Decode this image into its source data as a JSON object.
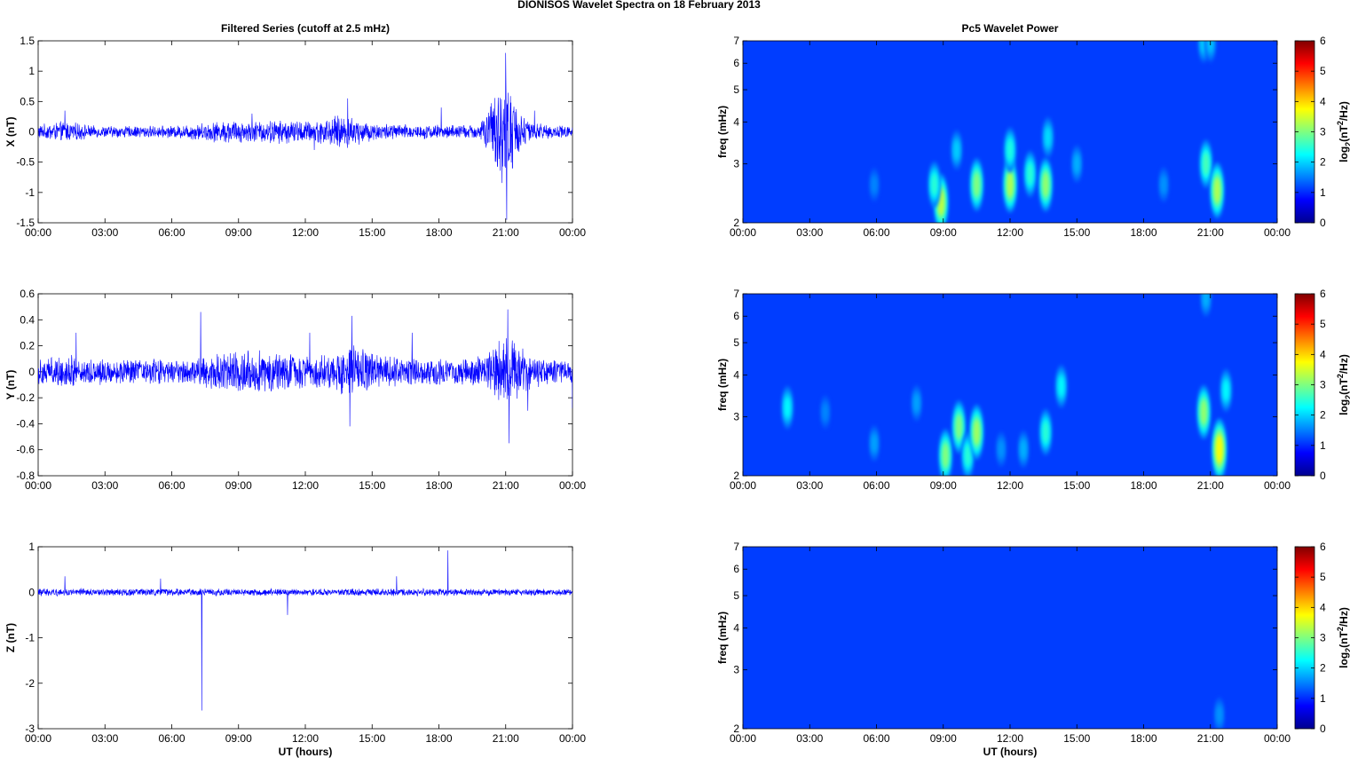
{
  "figure": {
    "title": "DIONISOS Wavelet Spectra on 18 February  2013"
  },
  "chart_data": [
    {
      "type": "line",
      "title": "Filtered Series (cutoff at 2.5 mHz)",
      "xlabel": "",
      "ylabel": "X (nT)",
      "xlim": [
        0,
        24
      ],
      "ylim": [
        -1.5,
        1.5
      ],
      "x_ticks": [
        "00:00",
        "03:00",
        "06:00",
        "09:00",
        "12:00",
        "15:00",
        "18:00",
        "21:00",
        "00:00"
      ],
      "y_ticks": [
        "-1.5",
        "-1",
        "-0.5",
        "0",
        "0.5",
        "1",
        "1.5"
      ],
      "line_color": "#0000ff",
      "series": [
        {
          "x": [
            0,
            1.2,
            2.5,
            4,
            6,
            8.7,
            9.5,
            11,
            12.4,
            13.8,
            14.3,
            15,
            17,
            18,
            19.8,
            21,
            21.3,
            21.7,
            22.2,
            24
          ],
          "amplitude": [
            0.12,
            0.18,
            0.1,
            0.1,
            0.1,
            0.2,
            0.18,
            0.2,
            0.18,
            0.3,
            0.22,
            0.15,
            0.12,
            0.12,
            0.12,
            1.0,
            0.6,
            0.35,
            0.15,
            0.1
          ],
          "spikes": [
            [
              1.2,
              0.35
            ],
            [
              9.6,
              0.3
            ],
            [
              12.4,
              -0.3
            ],
            [
              13.9,
              0.55
            ],
            [
              18.1,
              0.4
            ],
            [
              21.0,
              1.3
            ],
            [
              21.05,
              -1.45
            ],
            [
              21.3,
              -0.6
            ],
            [
              22.3,
              0.35
            ]
          ]
        }
      ]
    },
    {
      "type": "line",
      "title": "",
      "xlabel": "",
      "ylabel": "Y (nT)",
      "xlim": [
        0,
        24
      ],
      "ylim": [
        -0.8,
        0.6
      ],
      "x_ticks": [
        "00:00",
        "03:00",
        "06:00",
        "09:00",
        "12:00",
        "15:00",
        "18:00",
        "21:00",
        "00:00"
      ],
      "y_ticks": [
        "-0.8",
        "-0.6",
        "-0.4",
        "-0.2",
        "0",
        "0.2",
        "0.4",
        "0.6"
      ],
      "line_color": "#0000ff",
      "series": [
        {
          "x": [
            0,
            1.5,
            3,
            5,
            7,
            8,
            9.5,
            10.5,
            12,
            13.5,
            14.3,
            15.5,
            17,
            18.5,
            20,
            21,
            21.5,
            22.2,
            24
          ],
          "amplitude": [
            0.12,
            0.13,
            0.1,
            0.1,
            0.11,
            0.14,
            0.18,
            0.16,
            0.13,
            0.16,
            0.22,
            0.12,
            0.11,
            0.11,
            0.12,
            0.3,
            0.24,
            0.12,
            0.1
          ],
          "spikes": [
            [
              1.7,
              0.3
            ],
            [
              7.3,
              0.46
            ],
            [
              12.2,
              0.3
            ],
            [
              14.1,
              0.43
            ],
            [
              14.0,
              -0.42
            ],
            [
              16.8,
              0.3
            ],
            [
              21.1,
              0.48
            ],
            [
              21.15,
              -0.55
            ],
            [
              22.0,
              -0.3
            ],
            [
              24,
              -0.28
            ]
          ]
        }
      ]
    },
    {
      "type": "line",
      "title": "",
      "xlabel": "UT (hours)",
      "ylabel": "Z (nT)",
      "xlim": [
        0,
        24
      ],
      "ylim": [
        -3,
        1
      ],
      "x_ticks": [
        "00:00",
        "03:00",
        "06:00",
        "09:00",
        "12:00",
        "15:00",
        "18:00",
        "21:00",
        "00:00"
      ],
      "y_ticks": [
        "-3",
        "-2",
        "-1",
        "0",
        "1"
      ],
      "line_color": "#0000ff",
      "series": [
        {
          "x": [
            0,
            3,
            6,
            9,
            12,
            15,
            18,
            21,
            24
          ],
          "amplitude": [
            0.09,
            0.08,
            0.08,
            0.08,
            0.08,
            0.08,
            0.08,
            0.08,
            0.07
          ],
          "spikes": [
            [
              1.2,
              0.35
            ],
            [
              5.5,
              0.3
            ],
            [
              7.35,
              -2.6
            ],
            [
              11.2,
              -0.5
            ],
            [
              16.1,
              0.35
            ],
            [
              18.4,
              0.92
            ]
          ]
        }
      ]
    },
    {
      "type": "heatmap",
      "title": "Pc5 Wavelet Power",
      "xlabel": "",
      "ylabel": "freq (mHz)",
      "xlim": [
        0,
        24
      ],
      "ylim": [
        2,
        7
      ],
      "yscale": "log",
      "x_ticks": [
        "00:00",
        "03:00",
        "06:00",
        "09:00",
        "12:00",
        "15:00",
        "18:00",
        "21:00",
        "00:00"
      ],
      "y_ticks": [
        "2",
        "3",
        "4",
        "5",
        "6",
        "7"
      ],
      "colorbar": {
        "label": "log2(nT2/Hz)",
        "range": [
          0,
          6
        ],
        "ticks": [
          "0",
          "1",
          "2",
          "3",
          "4",
          "5",
          "6"
        ],
        "colormap": "jet"
      },
      "blobs": [
        {
          "t": 8.9,
          "f": 2.3,
          "power": 2.6
        },
        {
          "t": 8.6,
          "f": 2.6,
          "power": 1.6
        },
        {
          "t": 9.6,
          "f": 3.3,
          "power": 1.0
        },
        {
          "t": 10.5,
          "f": 2.6,
          "power": 2.2
        },
        {
          "t": 12.0,
          "f": 2.6,
          "power": 2.5
        },
        {
          "t": 12.0,
          "f": 3.3,
          "power": 1.5
        },
        {
          "t": 12.9,
          "f": 2.8,
          "power": 1.6
        },
        {
          "t": 13.6,
          "f": 2.6,
          "power": 2.3
        },
        {
          "t": 13.7,
          "f": 3.6,
          "power": 1.1
        },
        {
          "t": 15.0,
          "f": 3.0,
          "power": 0.8
        },
        {
          "t": 5.9,
          "f": 2.6,
          "power": 0.5
        },
        {
          "t": 18.9,
          "f": 2.6,
          "power": 0.6
        },
        {
          "t": 20.8,
          "f": 3.0,
          "power": 1.8
        },
        {
          "t": 21.3,
          "f": 2.5,
          "power": 2.5
        },
        {
          "t": 20.7,
          "f": 6.9,
          "power": 1.0
        },
        {
          "t": 21.0,
          "f": 6.9,
          "power": 0.9
        }
      ]
    },
    {
      "type": "heatmap",
      "title": "",
      "xlabel": "",
      "ylabel": "freq (mHz)",
      "xlim": [
        0,
        24
      ],
      "ylim": [
        2,
        7
      ],
      "yscale": "log",
      "x_ticks": [
        "00:00",
        "03:00",
        "06:00",
        "09:00",
        "12:00",
        "15:00",
        "18:00",
        "21:00",
        "00:00"
      ],
      "y_ticks": [
        "2",
        "3",
        "4",
        "5",
        "6",
        "7"
      ],
      "colorbar": {
        "label": "log2(nT2/Hz)",
        "range": [
          0,
          6
        ],
        "ticks": [
          "0",
          "1",
          "2",
          "3",
          "4",
          "5",
          "6"
        ],
        "colormap": "jet"
      },
      "blobs": [
        {
          "t": 2.0,
          "f": 3.2,
          "power": 1.3
        },
        {
          "t": 3.7,
          "f": 3.1,
          "power": 0.5
        },
        {
          "t": 5.9,
          "f": 2.5,
          "power": 0.7
        },
        {
          "t": 7.8,
          "f": 3.3,
          "power": 0.7
        },
        {
          "t": 9.1,
          "f": 2.3,
          "power": 2.2
        },
        {
          "t": 9.7,
          "f": 2.8,
          "power": 2.2
        },
        {
          "t": 10.1,
          "f": 2.3,
          "power": 1.6
        },
        {
          "t": 10.5,
          "f": 2.7,
          "power": 2.4
        },
        {
          "t": 11.6,
          "f": 2.4,
          "power": 0.6
        },
        {
          "t": 12.6,
          "f": 2.4,
          "power": 0.8
        },
        {
          "t": 13.6,
          "f": 2.7,
          "power": 1.6
        },
        {
          "t": 14.3,
          "f": 3.7,
          "power": 1.3
        },
        {
          "t": 20.7,
          "f": 3.1,
          "power": 2.3
        },
        {
          "t": 21.4,
          "f": 2.4,
          "power": 3.0
        },
        {
          "t": 21.7,
          "f": 3.6,
          "power": 1.3
        },
        {
          "t": 20.8,
          "f": 6.8,
          "power": 0.8
        }
      ]
    },
    {
      "type": "heatmap",
      "title": "",
      "xlabel": "UT (hours)",
      "ylabel": "freq (mHz)",
      "xlim": [
        0,
        24
      ],
      "ylim": [
        2,
        7
      ],
      "yscale": "log",
      "x_ticks": [
        "00:00",
        "03:00",
        "06:00",
        "09:00",
        "12:00",
        "15:00",
        "18:00",
        "21:00",
        "00:00"
      ],
      "y_ticks": [
        "2",
        "3",
        "4",
        "5",
        "6",
        "7"
      ],
      "colorbar": {
        "label": "log2(nT2/Hz)",
        "range": [
          0,
          6
        ],
        "ticks": [
          "0",
          "1",
          "2",
          "3",
          "4",
          "5",
          "6"
        ],
        "colormap": "jet"
      },
      "blobs": [
        {
          "t": 21.4,
          "f": 2.2,
          "power": 0.6
        }
      ]
    }
  ]
}
